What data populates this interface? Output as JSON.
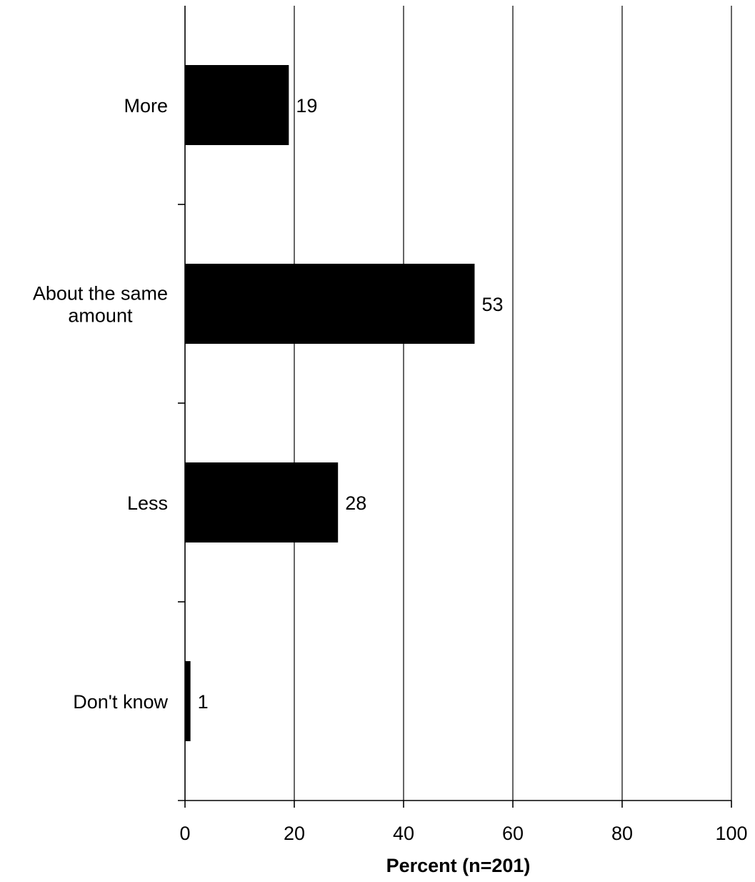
{
  "chart_data": {
    "type": "bar",
    "orientation": "horizontal",
    "categories": [
      [
        "More"
      ],
      [
        "About the same",
        "amount"
      ],
      [
        "Less"
      ],
      [
        "Don't know"
      ]
    ],
    "values": [
      19,
      53,
      28,
      1
    ],
    "value_labels": [
      "19",
      "53",
      "28",
      "1"
    ],
    "title": "",
    "xlabel": "Percent (n=201)",
    "ylabel": "",
    "xlim": [
      0,
      100
    ],
    "x_ticks": [
      0,
      20,
      40,
      60,
      80,
      100
    ],
    "x_tick_labels": [
      "0",
      "20",
      "40",
      "60",
      "80",
      "100"
    ],
    "grid": "vertical major gridlines",
    "legend": "none",
    "colors": {
      "bar": "#000000",
      "grid": "#000000",
      "axis": "#000000",
      "background": "#ffffff"
    }
  }
}
